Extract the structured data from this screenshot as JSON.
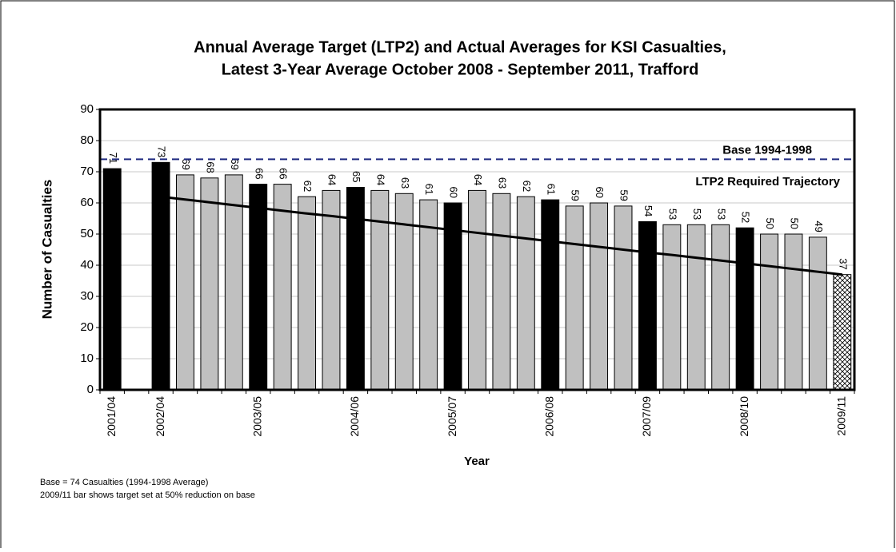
{
  "chart_data": {
    "type": "bar",
    "title": [
      "Annual Average Target (LTP2) and Actual Averages for KSI Casualties,",
      "Latest 3-Year Average October 2008 - September 2011, Trafford"
    ],
    "xlabel": "Year",
    "ylabel": "Number of Casualties",
    "categories": [
      "2001/04",
      null,
      "2002/04",
      null,
      null,
      null,
      "2003/05",
      null,
      null,
      null,
      "2004/06",
      null,
      null,
      null,
      "2005/07",
      null,
      null,
      null,
      "2006/08",
      null,
      null,
      null,
      "2007/09",
      null,
      null,
      null,
      "2008/10",
      null,
      null,
      null,
      "2009/11"
    ],
    "values": [
      71,
      null,
      73,
      69,
      68,
      69,
      66,
      66,
      62,
      64,
      65,
      64,
      63,
      61,
      60,
      64,
      63,
      62,
      61,
      59,
      60,
      59,
      54,
      53,
      53,
      53,
      52,
      50,
      50,
      49,
      37
    ],
    "colors": [
      "#000000",
      null,
      "#000000",
      "#c0c0c0",
      "#c0c0c0",
      "#c0c0c0",
      "#000000",
      "#c0c0c0",
      "#c0c0c0",
      "#c0c0c0",
      "#000000",
      "#c0c0c0",
      "#c0c0c0",
      "#c0c0c0",
      "#000000",
      "#c0c0c0",
      "#c0c0c0",
      "#c0c0c0",
      "#000000",
      "#c0c0c0",
      "#c0c0c0",
      "#c0c0c0",
      "#000000",
      "#c0c0c0",
      "#c0c0c0",
      "#c0c0c0",
      "#000000",
      "#c0c0c0",
      "#c0c0c0",
      "#c0c0c0",
      "crosshatch"
    ],
    "trajectory": {
      "name": "LTP2 Required Trajectory",
      "color": "#000000",
      "values": [
        null,
        null,
        62,
        61.1,
        60.2,
        59.3,
        58.4,
        57.5,
        56.6,
        55.8,
        54.9,
        54.0,
        53.1,
        52.2,
        51.3,
        50.4,
        49.5,
        48.6,
        47.7,
        46.8,
        45.9,
        45.0,
        44.1,
        43.3,
        42.4,
        41.5,
        40.6,
        39.7,
        38.8,
        37.9,
        37.0
      ]
    },
    "base": {
      "name": "Base 1994-1998",
      "value": 74,
      "color": "#1f2a80"
    },
    "ylim": [
      0,
      90
    ],
    "yticks": [
      0,
      10,
      20,
      30,
      40,
      50,
      60,
      70,
      80,
      90
    ],
    "grid": true,
    "notes": [
      "Base = 74 Casualties (1994-1998 Average)",
      "2009/11 bar shows target set at 50% reduction on base"
    ]
  }
}
